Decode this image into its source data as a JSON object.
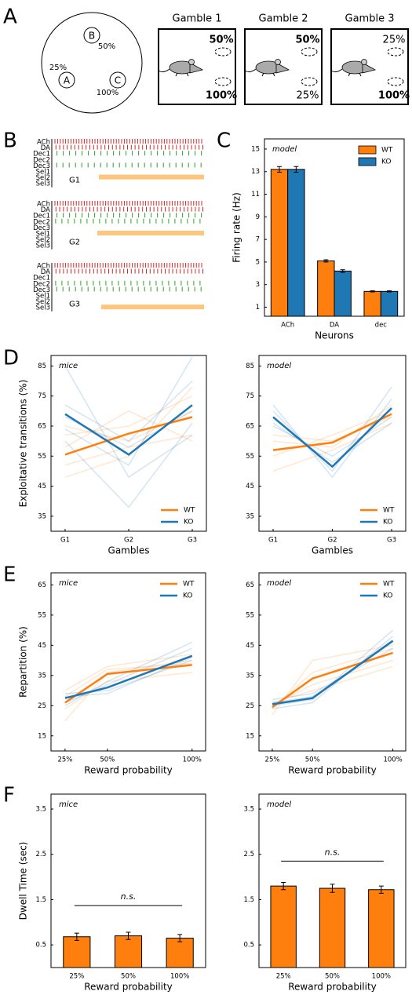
{
  "panel_letters": [
    "A",
    "B",
    "C",
    "D",
    "E",
    "F"
  ],
  "panel_a": {
    "arena": [
      {
        "label": "B",
        "reward": "50%"
      },
      {
        "label": "A",
        "reward": "25%"
      },
      {
        "label": "C",
        "reward": "100%"
      }
    ],
    "gambles": [
      {
        "title": "Gamble 1",
        "top": "50%",
        "bottom": "100%",
        "bold": [
          true,
          true
        ]
      },
      {
        "title": "Gamble 2",
        "top": "50%",
        "bottom": "25%",
        "bold": [
          true,
          false
        ]
      },
      {
        "title": "Gamble 3",
        "top": "25%",
        "bottom": "100%",
        "bold": [
          false,
          true
        ]
      }
    ]
  },
  "panel_b": {
    "rows": [
      "ACh",
      "DA",
      "Dec1",
      "Dec2",
      "Dec3",
      "Sel1",
      "Sel2",
      "Sel3"
    ],
    "blocks": [
      "G1",
      "G2",
      "G3"
    ]
  },
  "chart_data": [
    {
      "type": "bar",
      "title": "model",
      "categories": [
        "ACh",
        "DA",
        "dec"
      ],
      "series": [
        {
          "name": "WT",
          "color": "#ff7f0e",
          "values": [
            13.2,
            5.1,
            2.4
          ],
          "errors": [
            0.25,
            0.1,
            0.05
          ]
        },
        {
          "name": "KO",
          "color": "#1f77b4",
          "values": [
            13.2,
            4.2,
            2.4
          ],
          "errors": [
            0.25,
            0.12,
            0.05
          ]
        }
      ],
      "xlabel": "Neurons",
      "ylabel": "Firing rate (Hz)",
      "ylim": [
        0.2,
        15.9
      ],
      "yticks": [
        1,
        3,
        5,
        7,
        9,
        11,
        13,
        15
      ],
      "legend": "upper right"
    },
    {
      "type": "line",
      "title": "mice",
      "categories": [
        "G1",
        "G2",
        "G3"
      ],
      "series": [
        {
          "name": "WT",
          "color": "#ff7f0e",
          "values": [
            55.5,
            62.5,
            68
          ],
          "individual_lines": [
            [
              62,
              65,
              75
            ],
            [
              48,
              55,
              78
            ],
            [
              58,
              70,
              60
            ],
            [
              65,
              60,
              70
            ],
            [
              52,
              58,
              62
            ]
          ]
        },
        {
          "name": "KO",
          "color": "#1f77b4",
          "values": [
            69,
            55.5,
            72
          ],
          "individual_lines": [
            [
              85,
              48,
              62
            ],
            [
              72,
              60,
              80
            ],
            [
              60,
              38,
              66
            ],
            [
              64,
              52,
              88
            ],
            [
              68,
              58,
              70
            ]
          ]
        }
      ],
      "xlabel": "Gambles",
      "ylabel": "Exploitative transitions (%)",
      "ylim": [
        30,
        88.5
      ],
      "yticks": [
        35,
        45,
        55,
        65,
        75,
        85
      ],
      "legend": "lower right"
    },
    {
      "type": "line",
      "title": "model",
      "categories": [
        "G1",
        "G2",
        "G3"
      ],
      "series": [
        {
          "name": "WT",
          "color": "#ff7f0e",
          "values": [
            57,
            59.5,
            69
          ],
          "individual_lines": [
            [
              55,
              62,
              70
            ],
            [
              60,
              58,
              72
            ],
            [
              50,
              57,
              66
            ],
            [
              62,
              60,
              68
            ]
          ]
        },
        {
          "name": "KO",
          "color": "#1f77b4",
          "values": [
            68,
            51.5,
            71
          ],
          "individual_lines": [
            [
              72,
              48,
              74
            ],
            [
              65,
              55,
              68
            ],
            [
              70,
              50,
              78
            ],
            [
              66,
              53,
              66
            ]
          ]
        }
      ],
      "xlabel": "Gambles",
      "ylim": [
        30,
        88.5
      ],
      "yticks": [
        35,
        45,
        55,
        65,
        75,
        85
      ],
      "legend": "lower right"
    },
    {
      "type": "line",
      "title": "mice",
      "x": [
        25,
        50,
        100
      ],
      "series": [
        {
          "name": "WT",
          "color": "#ff7f0e",
          "values": [
            26,
            35.5,
            38.5
          ],
          "individual_lines": [
            [
              20,
              36,
              40
            ],
            [
              30,
              38,
              42
            ],
            [
              24,
              33,
              36
            ],
            [
              28,
              37,
              39
            ]
          ]
        },
        {
          "name": "KO",
          "color": "#1f77b4",
          "values": [
            27.5,
            31,
            41.5
          ],
          "individual_lines": [
            [
              26,
              32,
              44
            ],
            [
              29,
              30,
              40
            ],
            [
              25,
              33,
              46
            ],
            [
              28,
              29,
              41
            ]
          ]
        }
      ],
      "xlabel": "Reward probability",
      "ylabel": "Repartition (%)",
      "xlim": [
        16.7,
        108
      ],
      "xticks": [
        {
          "value": 25,
          "label": "25%"
        },
        {
          "value": 50,
          "label": "50%"
        },
        {
          "value": 100,
          "label": "100%"
        }
      ],
      "ylim": [
        10,
        69
      ],
      "yticks": [
        15,
        25,
        35,
        45,
        55,
        65
      ],
      "legend": "upper right"
    },
    {
      "type": "line",
      "title": "model",
      "x": [
        25,
        50,
        100
      ],
      "series": [
        {
          "name": "WT",
          "color": "#ff7f0e",
          "values": [
            24.5,
            34,
            42.5
          ],
          "individual_lines": [
            [
              22,
              40,
              45
            ],
            [
              25,
              32,
              40
            ],
            [
              24,
              36,
              44
            ],
            [
              26,
              30,
              38
            ]
          ]
        },
        {
          "name": "KO",
          "color": "#1f77b4",
          "values": [
            25.5,
            27.5,
            46.5
          ],
          "individual_lines": [
            [
              24,
              26,
              48
            ],
            [
              27,
              29,
              44
            ],
            [
              25,
              27,
              50
            ],
            [
              26,
              28,
              46
            ]
          ]
        }
      ],
      "xlabel": "Reward probability",
      "xlim": [
        16.7,
        108
      ],
      "xticks": [
        {
          "value": 25,
          "label": "25%"
        },
        {
          "value": 50,
          "label": "50%"
        },
        {
          "value": 100,
          "label": "100%"
        }
      ],
      "ylim": [
        10,
        69
      ],
      "yticks": [
        15,
        25,
        35,
        45,
        55,
        65
      ],
      "legend": "upper right"
    },
    {
      "type": "bar",
      "title": "mice",
      "categories": [
        "25%",
        "50%",
        "100%"
      ],
      "series": [
        {
          "color": "#ff7f0e",
          "values": [
            0.68,
            0.7,
            0.65
          ],
          "errors": [
            0.08,
            0.08,
            0.08
          ]
        }
      ],
      "annotation": {
        "text": "n.s.",
        "y": 1.37
      },
      "xlabel": "Reward probability",
      "ylabel": "Dwell Time (sec)",
      "ylim": [
        0,
        3.83
      ],
      "yticks": [
        0.5,
        1.5,
        2.5,
        3.5
      ]
    },
    {
      "type": "bar",
      "title": "model",
      "categories": [
        "25%",
        "50%",
        "100%"
      ],
      "series": [
        {
          "color": "#ff7f0e",
          "values": [
            1.8,
            1.75,
            1.72
          ],
          "errors": [
            0.08,
            0.09,
            0.08
          ]
        }
      ],
      "annotation": {
        "text": "n.s.",
        "y": 2.35
      },
      "xlabel": "Reward probability",
      "ylim": [
        0,
        3.83
      ],
      "yticks": [
        0.5,
        1.5,
        2.5,
        3.5
      ]
    }
  ]
}
